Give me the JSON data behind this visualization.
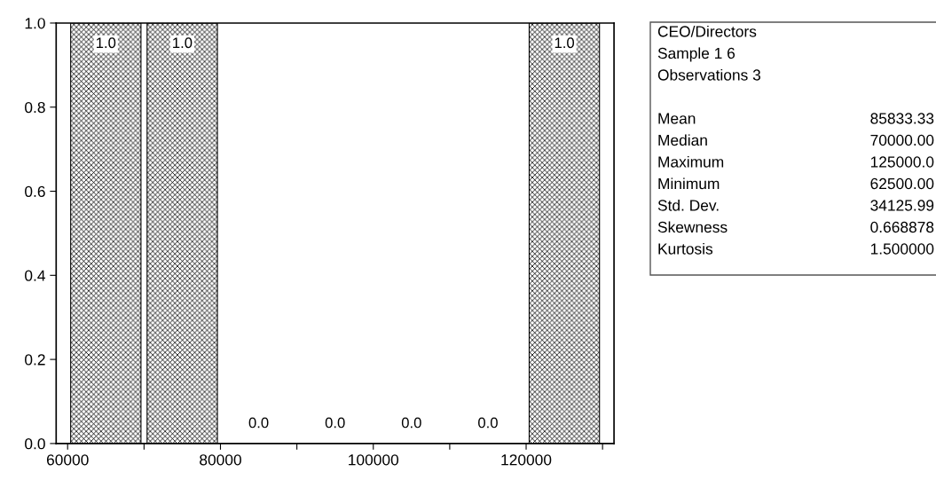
{
  "chart_data": {
    "type": "histogram",
    "bins": [
      60000,
      70000,
      80000,
      90000,
      100000,
      110000,
      120000,
      130000
    ],
    "values": [
      1,
      1,
      0,
      0,
      0,
      0,
      1
    ],
    "value_labels": [
      "1.0",
      "1.0",
      "0.0",
      "0.0",
      "0.0",
      "0.0",
      "1.0"
    ],
    "color": "#000000",
    "xlim": [
      58500,
      131500
    ],
    "xticks": [
      60000,
      {
        "value": 70000,
        "label": null
      },
      80000,
      {
        "value": 90000,
        "label": null
      },
      100000,
      {
        "value": 110000,
        "label": null
      },
      120000,
      {
        "value": 130000,
        "label": null
      }
    ],
    "ylim": [
      0,
      1.0
    ],
    "yticks": [
      {
        "value": 0,
        "label": "0.0"
      },
      {
        "value": 0.2,
        "label": "0.2"
      },
      {
        "value": 0.4,
        "label": "0.4"
      },
      {
        "value": 0.6,
        "label": "0.6"
      },
      {
        "value": 0.8,
        "label": "0.8"
      },
      {
        "value": 1.0,
        "label": "1.0"
      }
    ],
    "grid": false,
    "legend": false,
    "annotations": [
      "CEO/Directors",
      "Sample 1 6",
      "Observations 3",
      "Mean",
      "85833.33",
      "Median",
      "70000.00",
      "Maximum",
      "125000.0",
      "Minimum",
      "62500.00",
      "Std. Dev.",
      "34125.99",
      "Skewness",
      "0.668878",
      "Kurtosis",
      "1.500000"
    ]
  }
}
